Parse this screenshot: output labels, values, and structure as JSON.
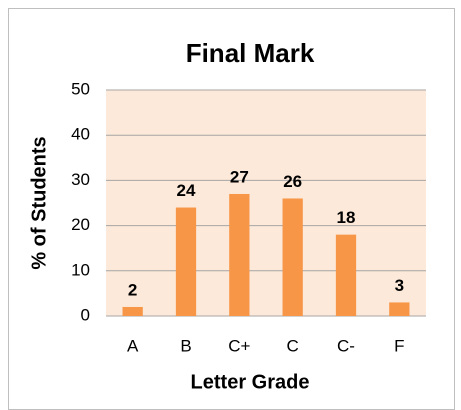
{
  "chart_data": {
    "type": "bar",
    "title": "Final Mark",
    "x_label": "Letter Grade",
    "y_label": "% of Students",
    "categories": [
      "A",
      "B",
      "C+",
      "C",
      "C-",
      "F"
    ],
    "values": [
      2,
      24,
      27,
      26,
      18,
      3
    ],
    "color": "#f79646",
    "plot_background": "#fde9d9",
    "ylim": [
      0,
      50
    ],
    "yticks": [
      0,
      10,
      20,
      30,
      40,
      50
    ],
    "grid": true,
    "data_labels": true
  }
}
